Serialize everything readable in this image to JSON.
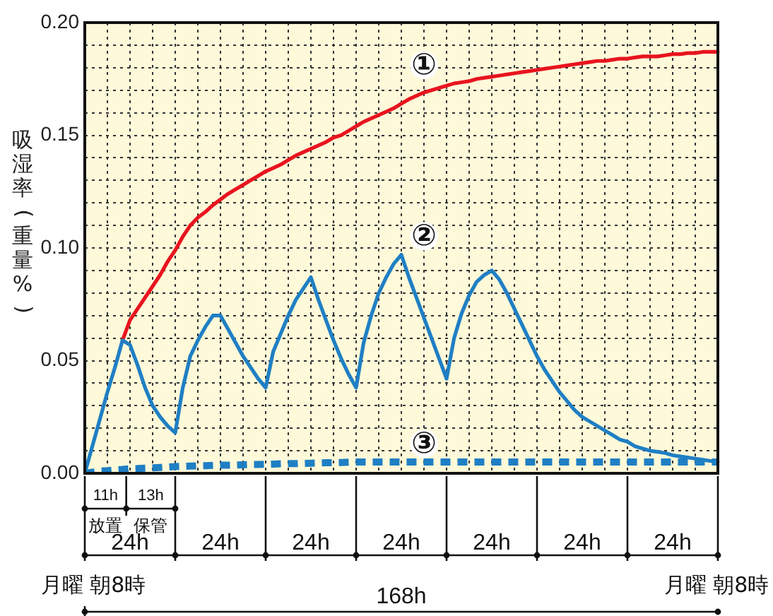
{
  "chart_data": {
    "type": "line",
    "ylabel": "吸湿率(重量%)",
    "categories": [
      null,
      null,
      null,
      null,
      null,
      null,
      null,
      null,
      null,
      null,
      null,
      null,
      null,
      null,
      null,
      null,
      null,
      null,
      null,
      null,
      null,
      null,
      null,
      null,
      null,
      null,
      null,
      null,
      null,
      null,
      null,
      null,
      null,
      null,
      null,
      null,
      null,
      null,
      null,
      null,
      null,
      null,
      null,
      null,
      null,
      null,
      null,
      null,
      null,
      null,
      null,
      null,
      null,
      null,
      null,
      null,
      null,
      null,
      null,
      null,
      null,
      null,
      null,
      null,
      null,
      null,
      null,
      null,
      null,
      null,
      null,
      null,
      null,
      null,
      null,
      null,
      null,
      null,
      null,
      null,
      null,
      null,
      null,
      null,
      null
    ],
    "ylim": [
      0,
      0.2
    ],
    "yticks": [
      {
        "value": 0,
        "label": "0.00"
      },
      {
        "value": 0.01,
        "label": null
      },
      {
        "value": 0.02,
        "label": null
      },
      {
        "value": 0.03,
        "label": null
      },
      {
        "value": 0.04,
        "label": null
      },
      0.05,
      {
        "value": 0.06,
        "label": null
      },
      {
        "value": 0.07,
        "label": null
      },
      {
        "value": 0.08,
        "label": null
      },
      {
        "value": 0.09,
        "label": null
      },
      {
        "value": 0.1,
        "label": "0.10"
      },
      {
        "value": 0.11,
        "label": null
      },
      {
        "value": 0.12,
        "label": null
      },
      {
        "value": 0.13,
        "label": null
      },
      {
        "value": 0.14,
        "label": null
      },
      0.15,
      {
        "value": 0.16,
        "label": null
      },
      {
        "value": 0.17,
        "label": null
      },
      {
        "value": 0.18,
        "label": null
      },
      {
        "value": 0.19,
        "label": null
      },
      {
        "value": 0.2,
        "label": "0.20"
      }
    ],
    "tick_labels": "y",
    "grid": true,
    "legend": false,
    "marker": "none",
    "series": [
      {
        "name": "①",
        "color": "#e8141e",
        "line_style": "solid",
        "values": [
          null,
          null,
          null,
          null,
          null,
          0.059,
          0.068,
          0.073,
          0.078,
          0.083,
          0.088,
          0.094,
          0.099,
          0.105,
          0.11,
          0.1135,
          0.116,
          0.119,
          0.1215,
          0.124,
          0.126,
          0.128,
          0.13,
          0.132,
          0.134,
          0.1355,
          0.137,
          0.139,
          0.141,
          0.1425,
          0.144,
          0.1455,
          0.147,
          0.149,
          0.15,
          0.152,
          0.154,
          0.156,
          0.1575,
          0.159,
          0.1605,
          0.162,
          0.164,
          0.166,
          0.1675,
          0.169,
          0.17,
          0.171,
          0.172,
          0.173,
          0.1735,
          0.174,
          0.175,
          0.1755,
          0.176,
          0.1765,
          0.177,
          0.1775,
          0.178,
          0.1785,
          0.179,
          0.1795,
          0.18,
          0.1805,
          0.181,
          0.1815,
          0.182,
          0.1825,
          0.183,
          0.183,
          0.1835,
          0.184,
          0.184,
          0.1845,
          0.185,
          0.185,
          0.185,
          0.1855,
          0.186,
          0.186,
          0.1865,
          0.1865,
          0.187,
          0.187,
          0.187
        ]
      },
      {
        "name": "②",
        "color": "#1f7fc4",
        "line_style": "solid",
        "values": [
          0,
          0.012,
          0.024,
          0.036,
          0.047,
          0.059,
          0.057,
          0.048,
          0.038,
          0.03,
          0.025,
          0.021,
          0.018,
          0.038,
          0.052,
          0.059,
          0.065,
          0.07,
          0.07,
          0.064,
          0.058,
          0.052,
          0.047,
          0.042,
          0.038,
          0.054,
          0.062,
          0.07,
          0.077,
          0.082,
          0.087,
          0.077,
          0.068,
          0.059,
          0.051,
          0.044,
          0.038,
          0.058,
          0.07,
          0.08,
          0.087,
          0.093,
          0.097,
          0.087,
          0.078,
          0.069,
          0.06,
          0.051,
          0.042,
          0.06,
          0.071,
          0.079,
          0.085,
          0.088,
          0.09,
          0.086,
          0.08,
          0.073,
          0.066,
          0.059,
          0.052,
          0.046,
          0.041,
          0.036,
          0.032,
          0.028,
          0.025,
          0.023,
          0.021,
          0.019,
          0.017,
          0.015,
          0.014,
          0.012,
          0.011,
          0.01,
          0.0095,
          0.009,
          0.008,
          0.0075,
          0.007,
          0.0065,
          0.006,
          0.0055,
          0.005
        ]
      },
      {
        "name": "③",
        "color": "#1f7fc4",
        "line_style": "dashed",
        "values": [
          0,
          0.0005,
          0.001,
          0.0012,
          0.0015,
          0.0017,
          0.002,
          0.0021,
          0.0023,
          0.0024,
          0.0026,
          0.0028,
          0.003,
          0.0031,
          0.0032,
          0.0033,
          0.0034,
          0.0035,
          0.0036,
          0.0036,
          0.0037,
          0.0038,
          0.0039,
          0.0039,
          0.004,
          0.0041,
          0.0042,
          0.0043,
          0.0043,
          0.0044,
          0.0045,
          0.0046,
          0.0047,
          0.0047,
          0.0048,
          0.0049,
          0.005,
          0.005,
          0.005,
          0.005,
          0.005,
          0.005,
          0.005,
          0.005,
          0.005,
          0.005,
          0.005,
          0.005,
          0.005,
          0.005,
          0.005,
          0.005,
          0.005,
          0.005,
          0.005,
          0.005,
          0.005,
          0.005,
          0.005,
          0.005,
          0.005,
          0.005,
          0.005,
          0.005,
          0.005,
          0.005,
          0.005,
          0.005,
          0.005,
          0.005,
          0.005,
          0.005,
          0.005,
          0.005,
          0.005,
          0.005,
          0.005,
          0.005,
          0.005,
          0.005,
          0.005,
          0.005,
          0.005,
          0.005,
          0.005
        ]
      }
    ],
    "annotations": [
      "11h",
      "13h",
      "放置",
      "保管",
      "24h",
      "24h",
      "24h",
      "24h",
      "24h",
      "24h",
      "24h",
      "月曜 朝8時",
      "月曜 朝8時",
      "168h"
    ]
  }
}
